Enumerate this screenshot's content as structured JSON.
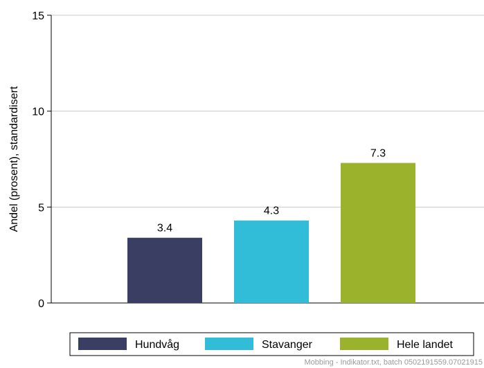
{
  "chart_data": {
    "type": "bar",
    "categories": [
      "Hundvåg",
      "Stavanger",
      "Hele landet"
    ],
    "values": [
      3.4,
      4.3,
      7.3
    ],
    "value_labels": [
      "3.4",
      "4.3",
      "7.3"
    ],
    "colors": [
      "#3b3e63",
      "#31bcd8",
      "#9bb32c"
    ],
    "title": "",
    "xlabel": "",
    "ylabel": "Andel (prosent), standardisert",
    "ylim": [
      0,
      15
    ],
    "yticks": [
      0,
      5,
      10,
      15
    ],
    "ytick_labels": [
      "0",
      "5",
      "10",
      "15"
    ],
    "grid": true,
    "legend_position": "bottom",
    "legend": [
      {
        "label": "Hundvåg",
        "color": "#3b3e63"
      },
      {
        "label": "Stavanger",
        "color": "#31bcd8"
      },
      {
        "label": "Hele landet",
        "color": "#9bb32c"
      }
    ]
  },
  "footer": "Mobbing - Indikator.txt, batch 0502191559.07021915"
}
